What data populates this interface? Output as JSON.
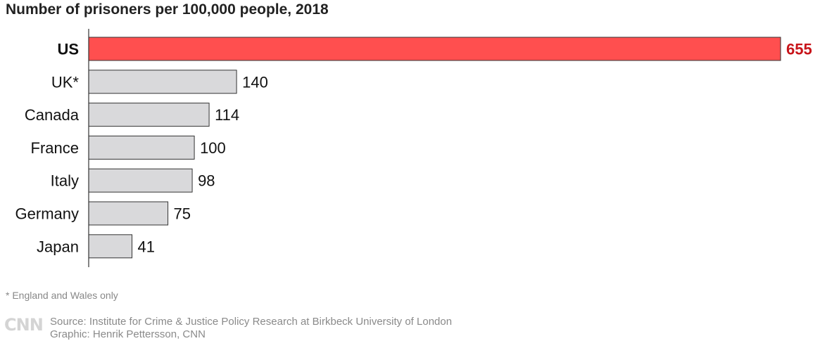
{
  "chart_data": {
    "type": "bar",
    "orientation": "horizontal",
    "title": "Number of prisoners per 100,000 people, 2018",
    "categories": [
      "US",
      "UK*",
      "Canada",
      "France",
      "Italy",
      "Germany",
      "Japan"
    ],
    "values": [
      655,
      140,
      114,
      100,
      98,
      75,
      41
    ],
    "highlight": "US",
    "colors": {
      "highlight_fill": "#ff4f4f",
      "highlight_label": "#c8141a",
      "bar_fill": "#d9d9db",
      "bar_stroke": "#333333"
    },
    "xlim": [
      0,
      655
    ],
    "grid": false,
    "legend": "none"
  },
  "footnote": "* England and Wales only",
  "logo": "CNN",
  "source": "Source: Institute for Crime & Justice Policy Research at Birkbeck University of London",
  "graphic": "Graphic: Henrik Pettersson, CNN"
}
